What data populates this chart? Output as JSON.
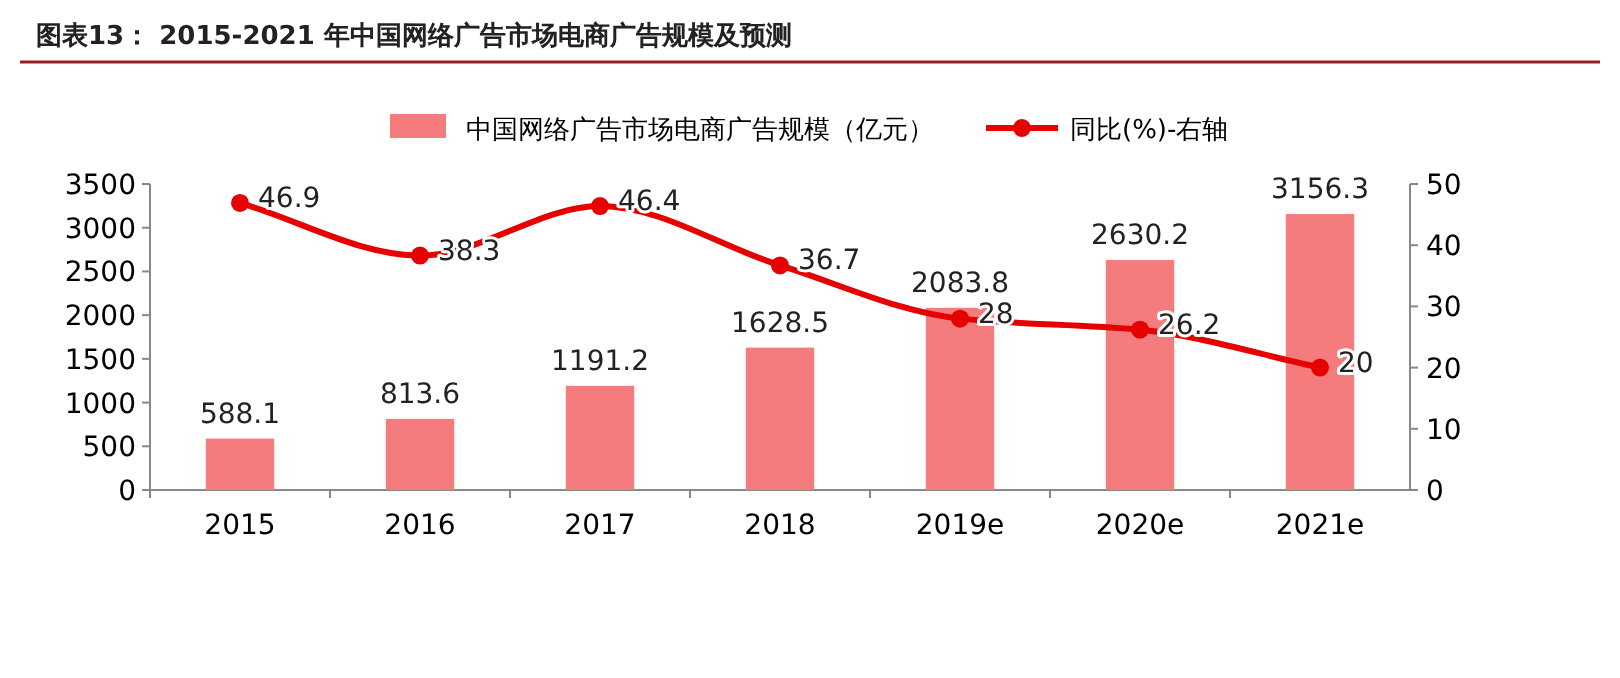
{
  "chart_data": {
    "type": "bar",
    "title": "图表13：  2015-2021 年中国网络广告市场电商广告规模及预测",
    "categories": [
      "2015",
      "2016",
      "2017",
      "2018",
      "2019e",
      "2020e",
      "2021e"
    ],
    "series": [
      {
        "name": "中国网络广告市场电商广告规模（亿元）",
        "color": "#f47c7c",
        "values": [
          588.1,
          813.6,
          1191.2,
          1628.5,
          2083.8,
          2630.2,
          3156.3
        ]
      },
      {
        "name": "同比(%)-右轴",
        "type": "line",
        "axis": "y2",
        "color": "#e60000",
        "values": [
          46.9,
          38.3,
          46.4,
          36.7,
          28,
          26.2,
          20
        ]
      }
    ],
    "ylim": [
      0,
      3500
    ],
    "yticks": [
      0,
      500,
      1000,
      1500,
      2000,
      2500,
      3000,
      3500
    ],
    "y2lim": [
      0,
      50
    ],
    "y2ticks": [
      0,
      10,
      20,
      30,
      40,
      50
    ],
    "data_labels": true,
    "legend": "top",
    "marker": "circle"
  }
}
